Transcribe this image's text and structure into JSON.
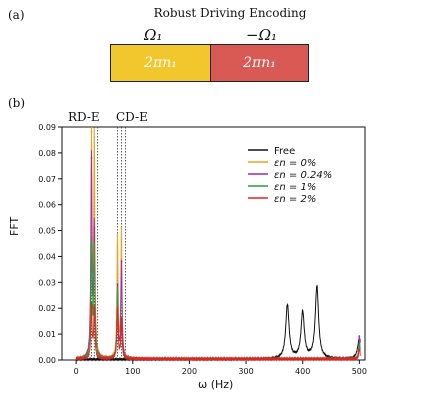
{
  "panel_a": {
    "label": "(a)",
    "title": "Robust Driving Encoding",
    "omega_left": "Ω₁",
    "omega_right": "−Ω₁",
    "block_left_text": "2πn₁",
    "block_right_text": "2πn₁",
    "block_left_color": "#f2c72e",
    "block_right_color": "#d95a55"
  },
  "panel_b": {
    "label": "(b)",
    "region_left": "RD-E",
    "region_right": "CD-E"
  },
  "chart_data": {
    "type": "line",
    "title": "",
    "xlabel": "ω (Hz)",
    "ylabel": "FFT",
    "xlim": [
      -25,
      510
    ],
    "ylim": [
      0.0,
      0.09
    ],
    "x_ticks": [
      0,
      100,
      200,
      300,
      400,
      500
    ],
    "y_ticks": [
      0.0,
      0.01,
      0.02,
      0.03,
      0.04,
      0.05,
      0.06,
      0.07,
      0.08,
      0.09
    ],
    "grid": false,
    "legend_position": "upper right",
    "vlines": [
      27,
      32,
      38,
      73,
      80,
      87
    ],
    "series": [
      {
        "name": "Free",
        "color": "#111111",
        "peaks": [
          {
            "x": 373,
            "y": 0.021
          },
          {
            "x": 400,
            "y": 0.018
          },
          {
            "x": 425,
            "y": 0.028
          },
          {
            "x": 500,
            "y": 0.008
          }
        ]
      },
      {
        "name": "εn = 0%",
        "color": "#f0a020",
        "peaks": [
          {
            "x": 27,
            "y": 0.088
          },
          {
            "x": 32,
            "y": 0.086
          },
          {
            "x": 73,
            "y": 0.048
          },
          {
            "x": 80,
            "y": 0.051
          },
          {
            "x": 500,
            "y": 0.007
          }
        ]
      },
      {
        "name": "εn = 0.24%",
        "color": "#9b2fae",
        "peaks": [
          {
            "x": 27,
            "y": 0.078
          },
          {
            "x": 32,
            "y": 0.051
          },
          {
            "x": 73,
            "y": 0.029
          },
          {
            "x": 80,
            "y": 0.038
          },
          {
            "x": 500,
            "y": 0.009
          }
        ]
      },
      {
        "name": "εn = 1%",
        "color": "#2e9e3a",
        "peaks": [
          {
            "x": 27,
            "y": 0.045
          },
          {
            "x": 32,
            "y": 0.044
          },
          {
            "x": 73,
            "y": 0.028
          },
          {
            "x": 80,
            "y": 0.016
          },
          {
            "x": 500,
            "y": 0.006
          }
        ]
      },
      {
        "name": "εn = 2%",
        "color": "#e8201f",
        "peaks": [
          {
            "x": 27,
            "y": 0.021
          },
          {
            "x": 32,
            "y": 0.02
          },
          {
            "x": 73,
            "y": 0.02
          },
          {
            "x": 80,
            "y": 0.016
          },
          {
            "x": 500,
            "y": 0.004
          }
        ]
      }
    ]
  }
}
